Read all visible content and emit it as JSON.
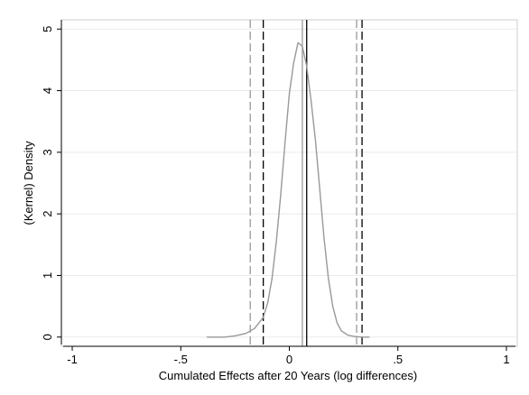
{
  "chart_data": {
    "type": "line",
    "title": "",
    "xlabel": "Cumulated Effects after 20 Years (log differences)",
    "ylabel": "(Kernel) Density",
    "xlim": [
      -1.05,
      1.05
    ],
    "ylim": [
      -0.15,
      5.15
    ],
    "x_ticks": [
      {
        "value": -1,
        "label": "-1"
      },
      {
        "value": -0.5,
        "label": "-.5"
      },
      {
        "value": 0,
        "label": "0"
      },
      {
        "value": 0.5,
        "label": ".5"
      },
      {
        "value": 1,
        "label": "1"
      }
    ],
    "y_ticks": [
      {
        "value": 0,
        "label": "0"
      },
      {
        "value": 1,
        "label": "1"
      },
      {
        "value": 2,
        "label": "2"
      },
      {
        "value": 3,
        "label": "3"
      },
      {
        "value": 4,
        "label": "4"
      },
      {
        "value": 5,
        "label": "5"
      }
    ],
    "grid": "horizontal",
    "density_color": "#999999",
    "series": [
      {
        "x": [
          -0.38,
          -0.3,
          -0.25,
          -0.2,
          -0.16,
          -0.12,
          -0.1,
          -0.08,
          -0.06,
          -0.04,
          -0.02,
          0.0,
          0.02,
          0.04,
          0.06,
          0.08,
          0.1,
          0.12,
          0.14,
          0.16,
          0.18,
          0.2,
          0.22,
          0.24,
          0.27,
          0.3,
          0.34,
          0.37
        ],
        "y": [
          0.0,
          0.0,
          0.02,
          0.06,
          0.14,
          0.32,
          0.55,
          0.95,
          1.55,
          2.3,
          3.15,
          3.95,
          4.45,
          4.78,
          4.72,
          4.4,
          3.85,
          3.2,
          2.4,
          1.6,
          0.95,
          0.5,
          0.23,
          0.1,
          0.03,
          0.01,
          0.0,
          0.0
        ]
      }
    ],
    "reference_lines": [
      {
        "x": -0.18,
        "color": "#999999",
        "style": "dashed"
      },
      {
        "x": -0.12,
        "color": "#000000",
        "style": "dashed"
      },
      {
        "x": 0.06,
        "color": "#999999",
        "style": "solid"
      },
      {
        "x": 0.08,
        "color": "#000000",
        "style": "solid"
      },
      {
        "x": 0.31,
        "color": "#999999",
        "style": "dashed"
      },
      {
        "x": 0.335,
        "color": "#000000",
        "style": "dashed"
      }
    ]
  }
}
